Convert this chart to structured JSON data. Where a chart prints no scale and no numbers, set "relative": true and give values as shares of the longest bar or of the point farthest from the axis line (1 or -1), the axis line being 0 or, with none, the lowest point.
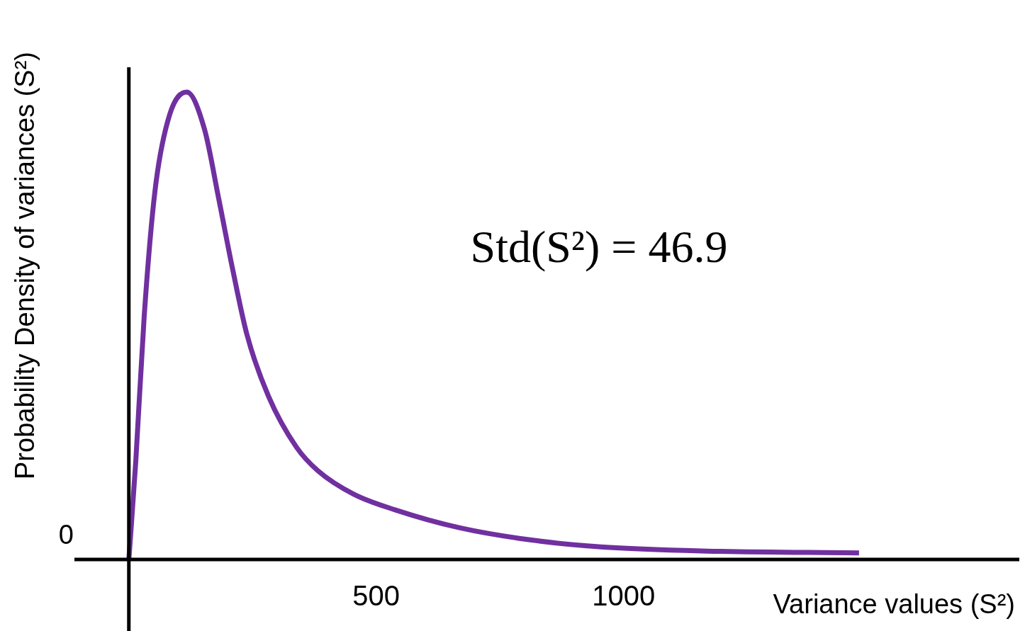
{
  "chart_data": {
    "type": "line",
    "xlabel": "Variance values (S²)",
    "ylabel": "Probability Density of variances (S²)",
    "relative": true,
    "xlim": [
      -110,
      1800
    ],
    "xticks": [
      500,
      1000
    ],
    "grid": false,
    "legend": false,
    "marker": "none",
    "line_style": "solid",
    "annotations": [
      "0",
      "Std(S²) = 46.9"
    ],
    "series": [
      {
        "color": "#7030a0",
        "x": [
          0,
          14,
          31,
          53,
          82,
          117,
          153,
          182,
          210,
          239,
          282,
          339,
          382,
          454,
          539,
          668,
          811,
          954,
          1169,
          1476
        ],
        "values": [
          0,
          0.21,
          0.52,
          0.79,
          0.95,
          1,
          0.92,
          0.77,
          0.62,
          0.48,
          0.35,
          0.24,
          0.19,
          0.14,
          0.106,
          0.068,
          0.042,
          0.027,
          0.018,
          0.014
        ]
      }
    ]
  }
}
